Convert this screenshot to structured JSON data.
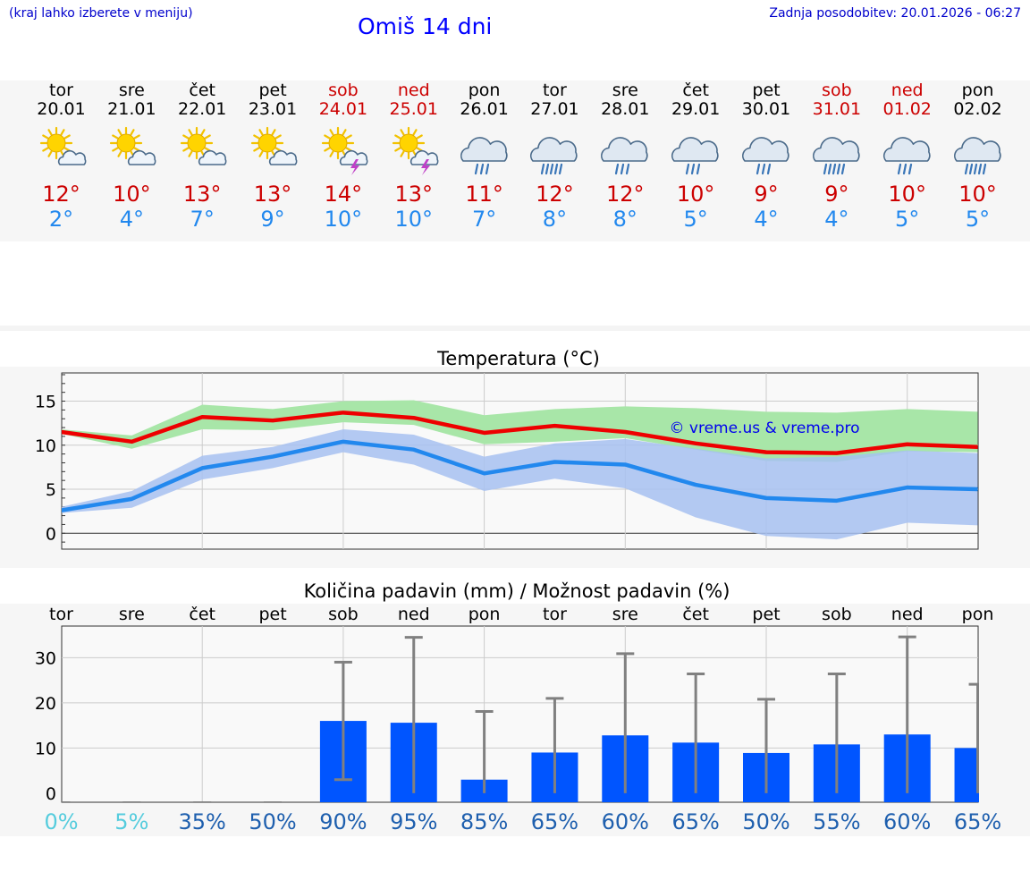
{
  "header": {
    "left_note": "(kraj lahko izberete v meniju)",
    "title": "Omiš 14 dni",
    "updated": "Zadnja posodobitev: 20.01.2026 - 06:27"
  },
  "days": [
    {
      "name": "tor",
      "date": "20.01",
      "weekend": false,
      "icon": "sun-cloud-icon",
      "tmax": "12°",
      "tmin": "2°"
    },
    {
      "name": "sre",
      "date": "21.01",
      "weekend": false,
      "icon": "sun-cloud-icon",
      "tmax": "10°",
      "tmin": "4°"
    },
    {
      "name": "čet",
      "date": "22.01",
      "weekend": false,
      "icon": "sun-cloud-icon",
      "tmax": "13°",
      "tmin": "7°"
    },
    {
      "name": "pet",
      "date": "23.01",
      "weekend": false,
      "icon": "sun-cloud-icon",
      "tmax": "13°",
      "tmin": "9°"
    },
    {
      "name": "sob",
      "date": "24.01",
      "weekend": true,
      "icon": "sun-thunder-icon",
      "tmax": "14°",
      "tmin": "10°"
    },
    {
      "name": "ned",
      "date": "25.01",
      "weekend": true,
      "icon": "sun-thunder-icon",
      "tmax": "13°",
      "tmin": "10°"
    },
    {
      "name": "pon",
      "date": "26.01",
      "weekend": false,
      "icon": "rain-cloud-icon",
      "tmax": "11°",
      "tmin": "7°"
    },
    {
      "name": "tor",
      "date": "27.01",
      "weekend": false,
      "icon": "heavy-rain-cloud-icon",
      "tmax": "12°",
      "tmin": "8°"
    },
    {
      "name": "sre",
      "date": "28.01",
      "weekend": false,
      "icon": "rain-cloud-icon",
      "tmax": "12°",
      "tmin": "8°"
    },
    {
      "name": "čet",
      "date": "29.01",
      "weekend": false,
      "icon": "rain-cloud-icon",
      "tmax": "10°",
      "tmin": "5°"
    },
    {
      "name": "pet",
      "date": "30.01",
      "weekend": false,
      "icon": "rain-cloud-icon",
      "tmax": "9°",
      "tmin": "4°"
    },
    {
      "name": "sob",
      "date": "31.01",
      "weekend": true,
      "icon": "heavy-rain-cloud-icon",
      "tmax": "9°",
      "tmin": "4°"
    },
    {
      "name": "ned",
      "date": "01.02",
      "weekend": true,
      "icon": "rain-cloud-icon",
      "tmax": "10°",
      "tmin": "5°"
    },
    {
      "name": "pon",
      "date": "02.02",
      "weekend": false,
      "icon": "heavy-rain-cloud-icon",
      "tmax": "10°",
      "tmin": "5°"
    }
  ],
  "colors": {
    "max_line": "#ee0000",
    "min_line": "#2288ee",
    "max_band": "#a8e6a8",
    "min_band": "#a7c1f1",
    "overlap_band": "#7fc4a4",
    "bar": "#0055ff",
    "whisker": "#808080",
    "prob_light": "#55ccdd",
    "prob_dark": "#1e5fae"
  },
  "chart_data": [
    {
      "type": "line",
      "title": "Temperatura (°C)",
      "watermark": "© vreme.us & vreme.pro",
      "x": [
        0,
        1,
        2,
        3,
        4,
        5,
        6,
        7,
        8,
        9,
        10,
        11,
        12,
        13
      ],
      "ylim": [
        -1.8,
        18.2
      ],
      "yticks": [
        0,
        5,
        10,
        15
      ],
      "series": [
        {
          "name": "max",
          "values": [
            11.5,
            10.4,
            13.2,
            12.8,
            13.7,
            13.1,
            11.4,
            12.2,
            11.5,
            10.2,
            9.2,
            9.1,
            10.1,
            9.8
          ]
        },
        {
          "name": "min",
          "values": [
            2.6,
            3.9,
            7.4,
            8.7,
            10.4,
            9.5,
            6.8,
            8.1,
            7.8,
            5.5,
            4.0,
            3.7,
            5.2,
            5.0
          ]
        }
      ],
      "bands": [
        {
          "name": "max_range",
          "lower": [
            11.3,
            9.6,
            11.8,
            11.7,
            12.6,
            12.3,
            10.1,
            10.4,
            10.8,
            9.5,
            8.2,
            8.1,
            9.3,
            9.2
          ],
          "upper": [
            11.8,
            11.1,
            14.6,
            14.1,
            15.0,
            15.1,
            13.4,
            14.1,
            14.4,
            14.2,
            13.8,
            13.7,
            14.1,
            13.8
          ]
        },
        {
          "name": "min_range",
          "lower": [
            2.3,
            2.9,
            6.1,
            7.4,
            9.2,
            7.8,
            4.8,
            6.2,
            5.1,
            1.8,
            -0.3,
            -0.7,
            1.2,
            0.9
          ],
          "upper": [
            3.0,
            4.8,
            8.8,
            9.8,
            11.8,
            11.2,
            8.7,
            10.2,
            10.7,
            9.6,
            8.5,
            8.7,
            9.4,
            9.1
          ]
        }
      ]
    },
    {
      "type": "bar",
      "title": "Količina padavin (mm) / Možnost padavin (%)",
      "categories": [
        "tor",
        "sre",
        "čet",
        "pet",
        "sob",
        "ned",
        "pon",
        "tor",
        "sre",
        "čet",
        "pet",
        "sob",
        "ned",
        "pon"
      ],
      "ylim": [
        -2,
        37
      ],
      "yticks": [
        0,
        10,
        20,
        30
      ],
      "values": [
        0,
        0,
        0,
        0,
        16,
        15.6,
        3,
        9,
        12.8,
        11.2,
        8.9,
        10.8,
        13,
        10
      ],
      "error_low": [
        0,
        0,
        0,
        0,
        3,
        0,
        0,
        0,
        0,
        0,
        0,
        0,
        0,
        0
      ],
      "error_high": [
        0,
        0,
        0,
        0,
        29,
        34.5,
        18.1,
        21,
        30.9,
        26.4,
        20.8,
        26.4,
        34.6,
        24.1
      ],
      "probability": [
        "0%",
        "5%",
        "35%",
        "50%",
        "90%",
        "95%",
        "85%",
        "65%",
        "60%",
        "65%",
        "50%",
        "55%",
        "60%",
        "65%"
      ],
      "probability_values": [
        0,
        5,
        35,
        50,
        90,
        95,
        85,
        65,
        60,
        65,
        50,
        55,
        60,
        65
      ]
    }
  ]
}
